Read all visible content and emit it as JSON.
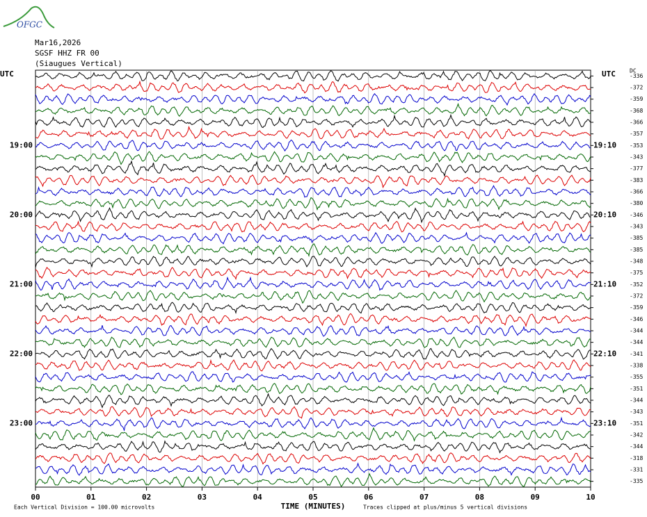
{
  "header": {
    "logo": "OFGC",
    "date": "Mar16,2026",
    "station": "SGSF HHZ FR 00",
    "location": "(Siaugues Vertical)"
  },
  "left_axis": {
    "title": "UTC",
    "labels": [
      "19:00",
      "20:00",
      "21:00",
      "22:00",
      "23:00"
    ]
  },
  "right_axis": {
    "title": "UTC",
    "dc_title": "DC",
    "labels": [
      "19:10",
      "20:10",
      "21:10",
      "22:10",
      "23:10"
    ],
    "dc_offsets": [
      -336,
      -372,
      -359,
      -368,
      -366,
      -357,
      -353,
      -343,
      -377,
      -383,
      -366,
      -380,
      -346,
      -343,
      -385,
      -385,
      -348,
      -375,
      -352,
      -372,
      -359,
      -346,
      -344,
      -344,
      -341,
      -338,
      -355,
      -351,
      -344,
      -343,
      -351,
      -342,
      -344,
      -318,
      -331,
      -335
    ]
  },
  "x_axis": {
    "title": "TIME (MINUTES)",
    "ticks": [
      "00",
      "01",
      "02",
      "03",
      "04",
      "05",
      "06",
      "07",
      "08",
      "09",
      "10"
    ]
  },
  "footer": {
    "scale_note": "Each Vertical Division =  100.00 microvolts",
    "clip_note": "Traces clipped at plus/minus 5 vertical divisions"
  }
}
